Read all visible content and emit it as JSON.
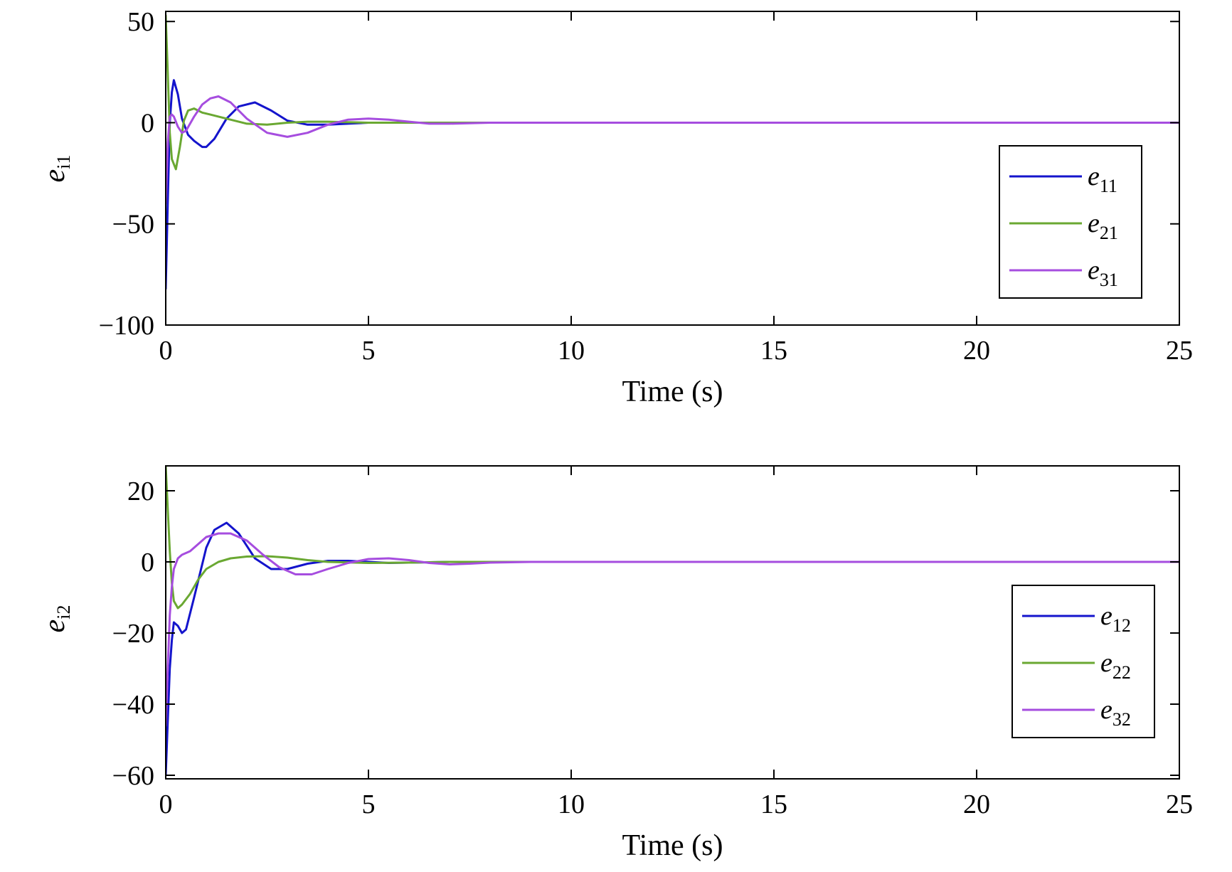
{
  "chart_data": [
    {
      "type": "line",
      "xlabel": "Time (s)",
      "ylabel": "e",
      "ylabel_sub": "i1",
      "xlim": [
        0,
        25
      ],
      "ylim": [
        -100,
        55
      ],
      "xticks": [
        "0",
        "5",
        "10",
        "15",
        "20",
        "25"
      ],
      "yticks": [
        "50",
        "0",
        "−50",
        "−100"
      ],
      "ytick_values": [
        50,
        0,
        -50,
        -100
      ],
      "legend_position": "right",
      "series": [
        {
          "name": "e",
          "name_sub": "11",
          "color": "#1414cc",
          "x": [
            0,
            0.05,
            0.1,
            0.15,
            0.2,
            0.3,
            0.4,
            0.55,
            0.7,
            0.9,
            1.0,
            1.2,
            1.5,
            1.8,
            2.2,
            2.6,
            3.0,
            3.5,
            4.0,
            4.5,
            5.0,
            6.0,
            8.0,
            25
          ],
          "y": [
            -82,
            -40,
            0,
            15,
            21,
            14,
            2,
            -6,
            -9,
            -12,
            -12,
            -8,
            2,
            8,
            10,
            6,
            1,
            -1,
            -1,
            -0.5,
            0,
            0,
            0,
            0
          ]
        },
        {
          "name": "e",
          "name_sub": "21",
          "color": "#6aa832",
          "x": [
            0,
            0.05,
            0.1,
            0.15,
            0.25,
            0.35,
            0.45,
            0.55,
            0.7,
            0.9,
            1.1,
            1.5,
            2.0,
            2.5,
            3.0,
            3.5,
            4.0,
            5.0,
            6.0,
            25
          ],
          "y": [
            53,
            25,
            -5,
            -18,
            -23,
            -12,
            1,
            6,
            7,
            5,
            4,
            2,
            -0.5,
            -1,
            0,
            0.5,
            0.5,
            0,
            0,
            0
          ]
        },
        {
          "name": "e",
          "name_sub": "31",
          "color": "#a64ddf",
          "x": [
            0,
            0.05,
            0.1,
            0.15,
            0.2,
            0.3,
            0.4,
            0.5,
            0.7,
            0.9,
            1.1,
            1.3,
            1.6,
            2.0,
            2.5,
            3.0,
            3.5,
            4.0,
            4.5,
            5.0,
            5.5,
            6.0,
            6.5,
            7.0,
            8.0,
            9.0,
            25
          ],
          "y": [
            -40,
            -10,
            3,
            4,
            3,
            -2,
            -5,
            -4,
            3,
            9,
            12,
            13,
            10,
            2,
            -5,
            -7,
            -5,
            -1,
            1.5,
            2,
            1.5,
            0.5,
            -0.5,
            -0.5,
            0,
            0,
            0
          ]
        }
      ]
    },
    {
      "type": "line",
      "xlabel": "Time (s)",
      "ylabel": "e",
      "ylabel_sub": "i2",
      "xlim": [
        0,
        25
      ],
      "ylim": [
        -61,
        27
      ],
      "xticks": [
        "0",
        "5",
        "10",
        "15",
        "20",
        "25"
      ],
      "yticks": [
        "20",
        "0",
        "−20",
        "−40",
        "−60"
      ],
      "ytick_values": [
        20,
        0,
        -20,
        -40,
        -60
      ],
      "legend_position": "right",
      "series": [
        {
          "name": "e",
          "name_sub": "12",
          "color": "#1414cc",
          "x": [
            0,
            0.05,
            0.1,
            0.15,
            0.2,
            0.3,
            0.4,
            0.5,
            0.7,
            1.0,
            1.2,
            1.5,
            1.8,
            2.2,
            2.6,
            3.0,
            3.5,
            4.0,
            4.5,
            5.0,
            5.5,
            6.0,
            7.0,
            9.0,
            25
          ],
          "y": [
            -60,
            -45,
            -30,
            -22,
            -17,
            -18,
            -20,
            -19,
            -10,
            4,
            9,
            11,
            8,
            1,
            -2,
            -2,
            -0.5,
            0.3,
            0.3,
            0,
            -0.3,
            -0.2,
            0,
            0,
            0
          ]
        },
        {
          "name": "e",
          "name_sub": "22",
          "color": "#6aa832",
          "x": [
            0,
            0.05,
            0.1,
            0.15,
            0.2,
            0.3,
            0.4,
            0.6,
            0.8,
            1.0,
            1.3,
            1.6,
            2.0,
            2.5,
            3.0,
            3.5,
            4.0,
            5.0,
            6.0,
            7.0,
            25
          ],
          "y": [
            27,
            15,
            3,
            -6,
            -11,
            -13,
            -12,
            -9,
            -5,
            -2,
            0,
            1,
            1.5,
            1.6,
            1.2,
            0.5,
            0,
            -0.3,
            -0.2,
            0,
            0
          ]
        },
        {
          "name": "e",
          "name_sub": "32",
          "color": "#a64ddf",
          "x": [
            0,
            0.05,
            0.1,
            0.15,
            0.2,
            0.3,
            0.4,
            0.6,
            0.8,
            1.0,
            1.3,
            1.6,
            2.0,
            2.4,
            2.8,
            3.2,
            3.6,
            4.0,
            4.5,
            5.0,
            5.5,
            6.0,
            6.5,
            7.0,
            7.5,
            8.0,
            9.0,
            25
          ],
          "y": [
            -46,
            -30,
            -15,
            -7,
            -2,
            1,
            2,
            3,
            5,
            7,
            8,
            8,
            6,
            2,
            -1.5,
            -3.5,
            -3.5,
            -2,
            -0.3,
            0.8,
            1,
            0.5,
            -0.3,
            -0.7,
            -0.5,
            -0.2,
            0,
            0
          ]
        }
      ]
    }
  ]
}
